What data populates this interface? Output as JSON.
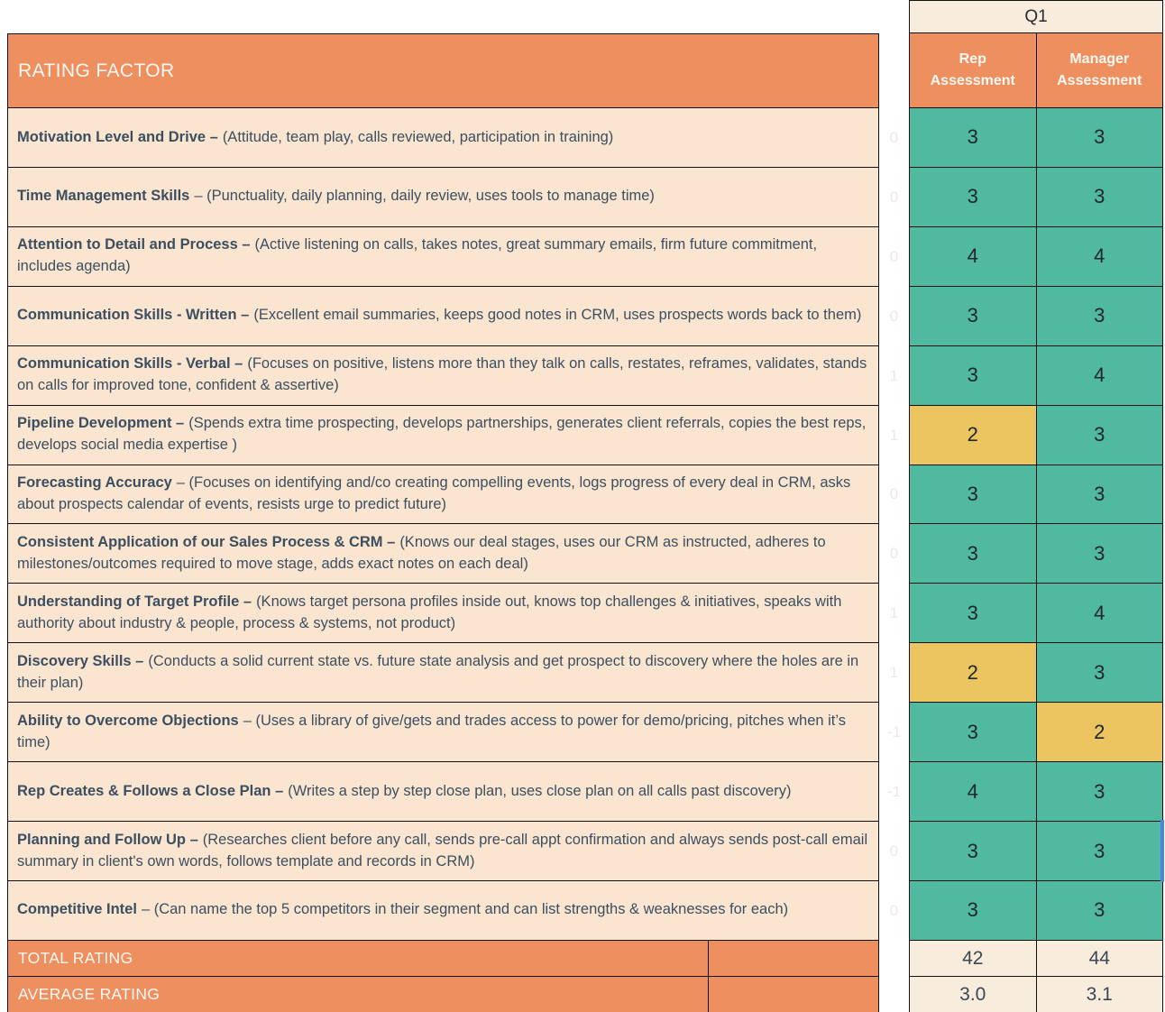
{
  "header": {
    "rating_factor": "RATING FACTOR",
    "quarter": "Q1",
    "rep_label": "Rep Assessment",
    "manager_label": "Manager Assessment"
  },
  "rows": [
    {
      "title": "Motivation Level and Drive –",
      "desc": "(Attitude, team play, calls reviewed, participation in training)",
      "diff": "0",
      "rep": "3",
      "manager": "3",
      "rep_color": "teal",
      "manager_color": "teal"
    },
    {
      "title": "Time Management Skills",
      "desc": "– (Punctuality, daily planning, daily review, uses tools to manage time)",
      "diff": "0",
      "rep": "3",
      "manager": "3",
      "rep_color": "teal",
      "manager_color": "teal"
    },
    {
      "title": "Attention to Detail and Process –",
      "desc": "(Active listening on calls, takes notes, great summary emails, firm future commitment, includes agenda)",
      "diff": "0",
      "rep": "4",
      "manager": "4",
      "rep_color": "teal",
      "manager_color": "teal"
    },
    {
      "title": "Communication Skills - Written –",
      "desc": "(Excellent email summaries, keeps good notes in CRM, uses prospects words back to them)",
      "diff": "0",
      "rep": "3",
      "manager": "3",
      "rep_color": "teal",
      "manager_color": "teal"
    },
    {
      "title": "Communication Skills - Verbal –",
      "desc": "(Focuses on positive, listens more than they talk on calls, restates, reframes, validates, stands on calls for improved tone, confident & assertive)",
      "diff": "1",
      "rep": "3",
      "manager": "4",
      "rep_color": "teal",
      "manager_color": "teal"
    },
    {
      "title": "Pipeline Development –",
      "desc": "(Spends extra time prospecting, develops partnerships, generates client referrals, copies the best reps, develops social media expertise )",
      "diff": "1",
      "rep": "2",
      "manager": "3",
      "rep_color": "yellow",
      "manager_color": "teal"
    },
    {
      "title": "Forecasting Accuracy",
      "desc": "– (Focuses on identifying and/co creating compelling events, logs progress of every deal in CRM, asks about prospects calendar of events, resists urge to predict future)",
      "diff": "0",
      "rep": "3",
      "manager": "3",
      "rep_color": "teal",
      "manager_color": "teal"
    },
    {
      "title": "Consistent Application of our Sales Process & CRM –",
      "desc": "(Knows our deal stages, uses our CRM as instructed, adheres to milestones/outcomes required to move stage, adds exact notes on each deal)",
      "diff": "0",
      "rep": "3",
      "manager": "3",
      "rep_color": "teal",
      "manager_color": "teal"
    },
    {
      "title": "Understanding of Target Profile –",
      "desc": "(Knows target persona profiles inside out, knows top challenges & initiatives, speaks with authority about industry & people, process & systems, not product)",
      "diff": "1",
      "rep": "3",
      "manager": "4",
      "rep_color": "teal",
      "manager_color": "teal"
    },
    {
      "title": "Discovery Skills –",
      "desc": "(Conducts a solid current state vs. future state analysis and get prospect to discovery where the holes are in their plan)",
      "diff": "1",
      "rep": "2",
      "manager": "3",
      "rep_color": "yellow",
      "manager_color": "teal"
    },
    {
      "title": "Ability to Overcome Objections",
      "desc": "– (Uses a library of give/gets and trades access to power for demo/pricing, pitches when it’s time)",
      "diff": "-1",
      "rep": "3",
      "manager": "2",
      "rep_color": "teal",
      "manager_color": "yellow"
    },
    {
      "title": "Rep Creates & Follows a Close Plan –",
      "desc": "(Writes a step by step close plan, uses close plan on all calls past discovery)",
      "diff": "-1",
      "rep": "4",
      "manager": "3",
      "rep_color": "teal",
      "manager_color": "teal"
    },
    {
      "title": "Planning and Follow Up –",
      "desc": "(Researches client before any call, sends pre-call appt confirmation and always sends post-call email summary in client's own words, follows template and records in CRM)",
      "diff": "0",
      "rep": "3",
      "manager": "3",
      "rep_color": "teal",
      "manager_color": "teal",
      "selected_manager": true
    },
    {
      "title": "Competitive Intel",
      "desc": "– (Can name the top 5 competitors in their segment and can list strengths & weaknesses for each)",
      "diff": "0",
      "rep": "3",
      "manager": "3",
      "rep_color": "teal",
      "manager_color": "teal"
    }
  ],
  "footer": {
    "total_label": "TOTAL RATING",
    "total_rep": "42",
    "total_manager": "44",
    "average_label": "AVERAGE RATING",
    "avg_rep": "3.0",
    "avg_manager": "3.1"
  },
  "colors": {
    "orange": "#EE8F60",
    "peach": "#FAE6D0",
    "cream": "#F8ECDC",
    "teal": "#52B9A1",
    "yellow": "#ECC561",
    "row_text": "#3C4E60",
    "cell_text": "#20262E",
    "white_text": "#FDF8F2",
    "faint_diff": "#EDE9E2",
    "border": "#111111",
    "selection_blue": "#4A86E8"
  }
}
